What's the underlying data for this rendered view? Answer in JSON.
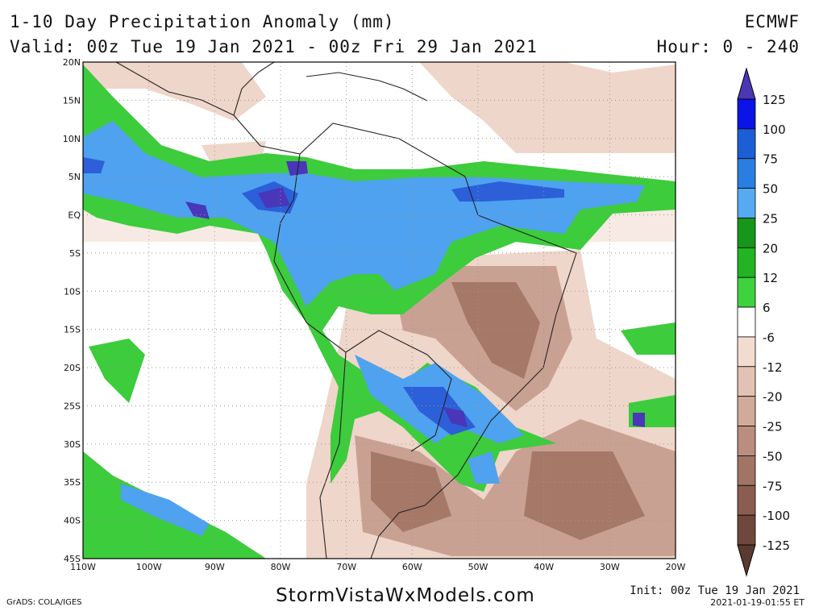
{
  "header": {
    "title": "1-10 Day Precipitation Anomaly (mm)",
    "model": "ECMWF",
    "valid": "Valid: 00z Tue 19 Jan 2021 - 00z Fri 29 Jan 2021",
    "hour": "Hour: 0 - 240"
  },
  "map": {
    "lat_labels": [
      "20N",
      "15N",
      "10N",
      "5N",
      "EQ",
      "5S",
      "10S",
      "15S",
      "20S",
      "25S",
      "30S",
      "35S",
      "40S",
      "45S"
    ],
    "lon_labels": [
      "110W",
      "100W",
      "90W",
      "80W",
      "70W",
      "60W",
      "50W",
      "40W",
      "30W",
      "20W"
    ]
  },
  "colorbar": {
    "labels": [
      "125",
      "100",
      "75",
      "50",
      "25",
      "20",
      "12",
      "6",
      "-6",
      "-12",
      "-20",
      "-25",
      "-50",
      "-75",
      "-100",
      "-125"
    ]
  },
  "footer": {
    "grads": "GrADS: COLA/IGES",
    "site": "StormVistaWxModels.com",
    "init": "Init: 00z Tue 19 Jan 2021",
    "stamp": "2021-01-19-01:55 ET"
  }
}
